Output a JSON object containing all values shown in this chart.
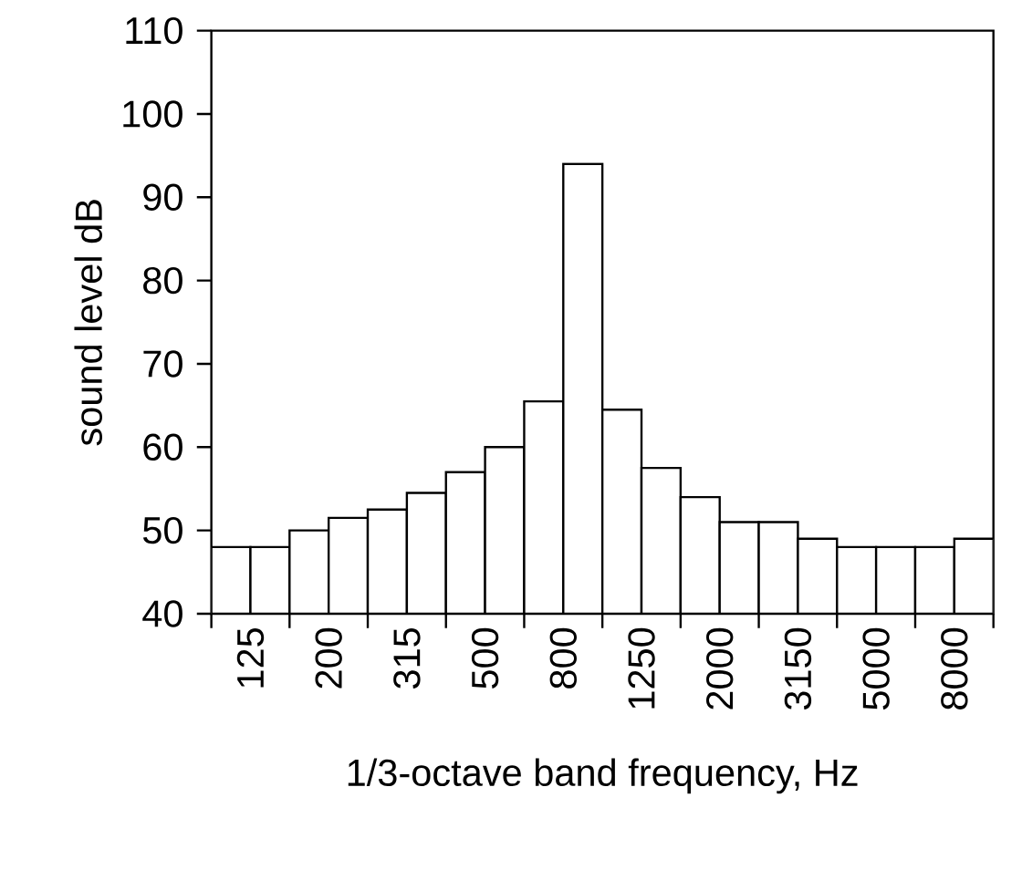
{
  "chart_data": {
    "type": "bar",
    "xlabel": "1/3-octave band frequency,  Hz",
    "ylabel": "sound level dB",
    "categories": [
      "125",
      null,
      "200",
      null,
      "315",
      null,
      "500",
      null,
      "800",
      null,
      "1250",
      null,
      "2000",
      null,
      "3150",
      null,
      "5000",
      null,
      "8000",
      null
    ],
    "values": [
      48,
      48,
      50,
      51.5,
      52.5,
      54.5,
      57,
      60,
      65.5,
      94,
      64.5,
      57.5,
      54,
      51,
      51,
      49,
      48,
      48,
      48,
      49
    ],
    "color": "#ffffff",
    "ylim": [
      40,
      110
    ],
    "yticks": [
      40,
      50,
      60,
      70,
      80,
      90,
      100,
      110
    ]
  }
}
